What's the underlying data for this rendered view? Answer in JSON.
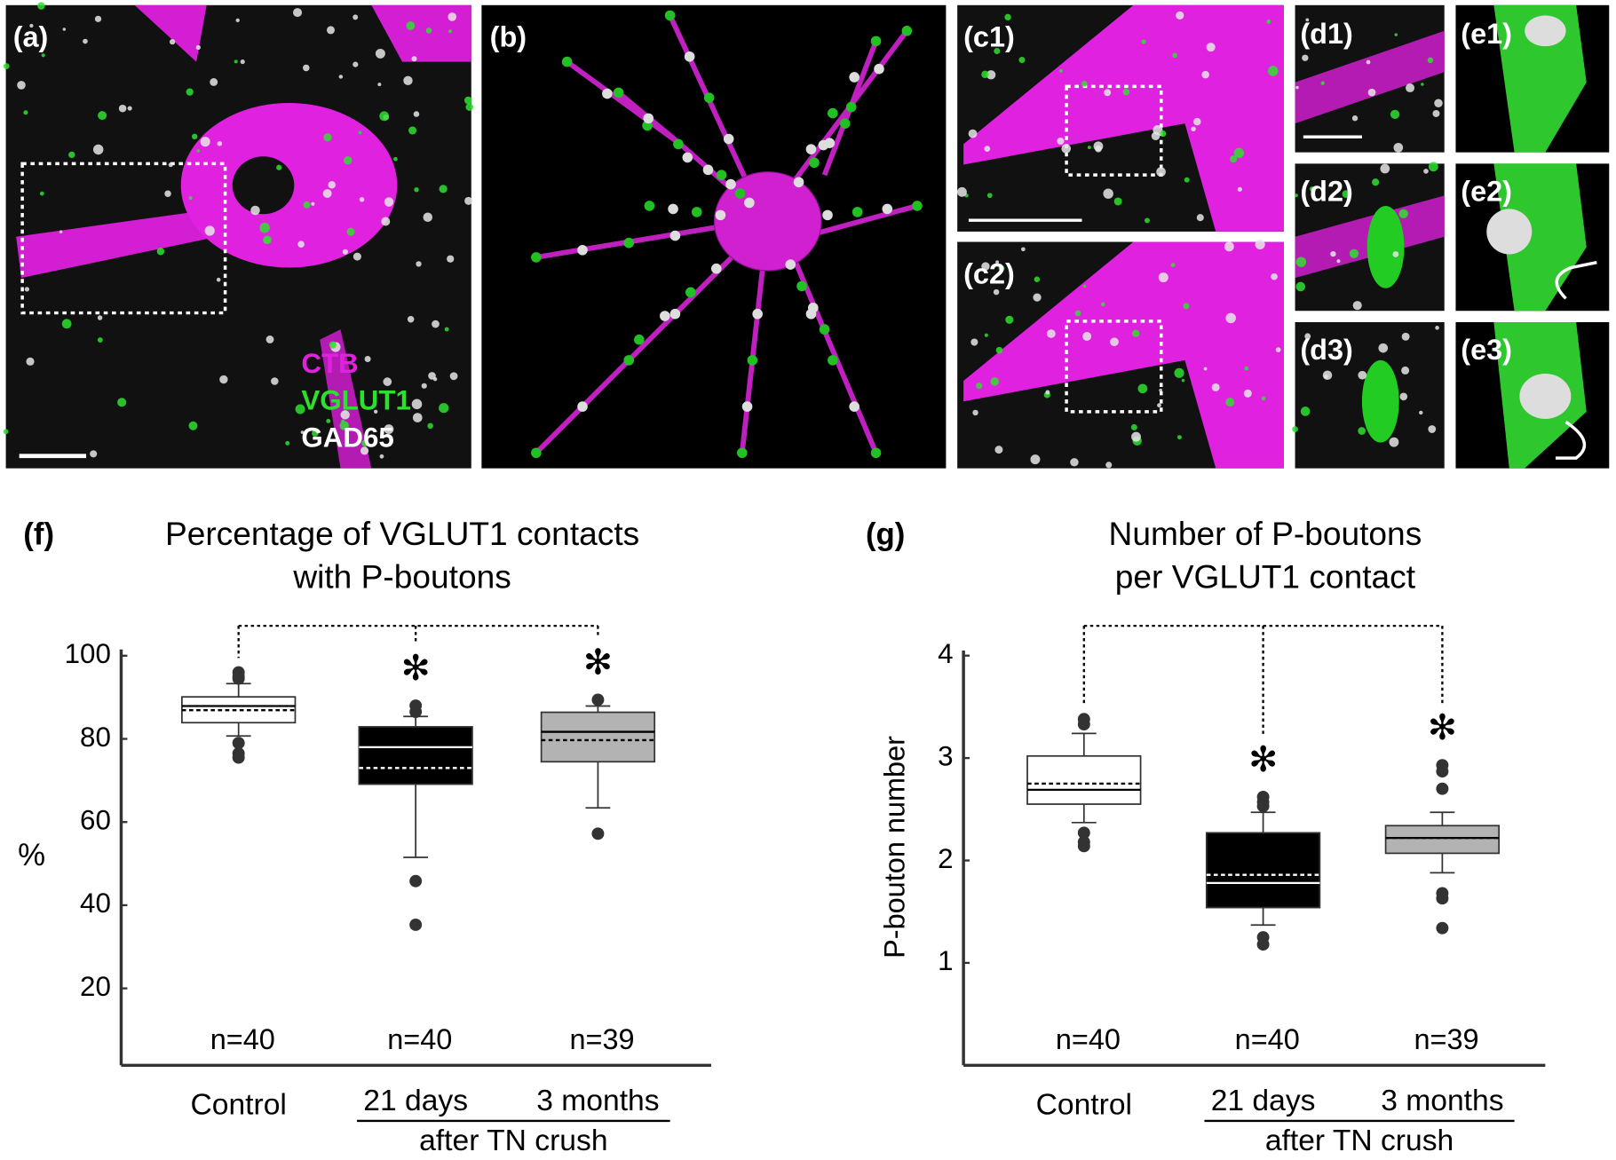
{
  "panel_labels": [
    "(a)",
    "(b)",
    "(c1)",
    "(c2)",
    "(d1)",
    "(d2)",
    "(d3)",
    "(e1)",
    "(e2)",
    "(e3)"
  ],
  "stain_legend": [
    {
      "name": "CTB",
      "color": "#e021e0"
    },
    {
      "name": "VGLUT1",
      "color": "#2ee02e"
    },
    {
      "name": "GAD65",
      "color": "#ffffff"
    }
  ],
  "chart_data": [
    {
      "type": "box",
      "panel_label": "(f)",
      "title": [
        "Percentage of VGLUT1 contacts",
        "with P-boutons"
      ],
      "ylabel": "%",
      "categories": [
        "Control",
        "21 days",
        "3 months"
      ],
      "group_label": "after TN crush",
      "n_labels": [
        "n=40",
        "n=40",
        "n=39"
      ],
      "significance": [
        null,
        "✻",
        "✻"
      ],
      "ylim": [
        1.5,
        101.5
      ],
      "yticks": [
        20,
        40,
        60,
        80,
        100
      ],
      "boxes": [
        {
          "fill": "#ffffff",
          "whisker_low": 80.7,
          "q1": 83.9,
          "median": 87.9,
          "mean": 86.9,
          "q3": 90.1,
          "whisker_high": 93.3,
          "outliers": [
            96,
            95,
            94.5,
            79,
            76.5,
            75.5
          ]
        },
        {
          "fill": "#000000",
          "whisker_low": 51.5,
          "q1": 69.1,
          "median": 78,
          "mean": 73,
          "q3": 82.9,
          "whisker_high": 85.4,
          "outliers": [
            88,
            86.5,
            45.8,
            35.3
          ]
        },
        {
          "fill": "#b3b3b3",
          "whisker_low": 63.4,
          "q1": 74.5,
          "median": 81.7,
          "mean": 79.7,
          "q3": 86.4,
          "whisker_high": 87.9,
          "outliers": [
            89.4,
            57.2
          ]
        }
      ]
    },
    {
      "type": "box",
      "panel_label": "(g)",
      "title": [
        "Number of P-boutons",
        "per VGLUT1 contact"
      ],
      "ylabel": "P-bouton number",
      "categories": [
        "Control",
        "21 days",
        "3 months"
      ],
      "group_label": "after TN crush",
      "n_labels": [
        "n=40",
        "n=40",
        "n=39"
      ],
      "significance": [
        null,
        "✻",
        "✻"
      ],
      "ylim": [
        0,
        4.05
      ],
      "yticks": [
        1,
        2,
        3,
        4
      ],
      "boxes": [
        {
          "fill": "#ffffff",
          "whisker_low": 2.37,
          "q1": 2.55,
          "median": 2.69,
          "mean": 2.75,
          "q3": 3.02,
          "whisker_high": 3.24,
          "outliers": [
            3.38,
            3.33,
            2.27,
            2.18,
            2.14
          ]
        },
        {
          "fill": "#000000",
          "whisker_low": 1.37,
          "q1": 1.54,
          "median": 1.78,
          "mean": 1.86,
          "q3": 2.27,
          "whisker_high": 2.47,
          "outliers": [
            2.62,
            2.57,
            2.53,
            1.25,
            1.18
          ]
        },
        {
          "fill": "#b3b3b3",
          "whisker_low": 1.88,
          "q1": 2.07,
          "median": 2.22,
          "mean": 2.22,
          "q3": 2.34,
          "whisker_high": 2.47,
          "outliers": [
            2.93,
            2.87,
            2.7,
            1.68,
            1.63,
            1.34
          ]
        }
      ]
    }
  ]
}
